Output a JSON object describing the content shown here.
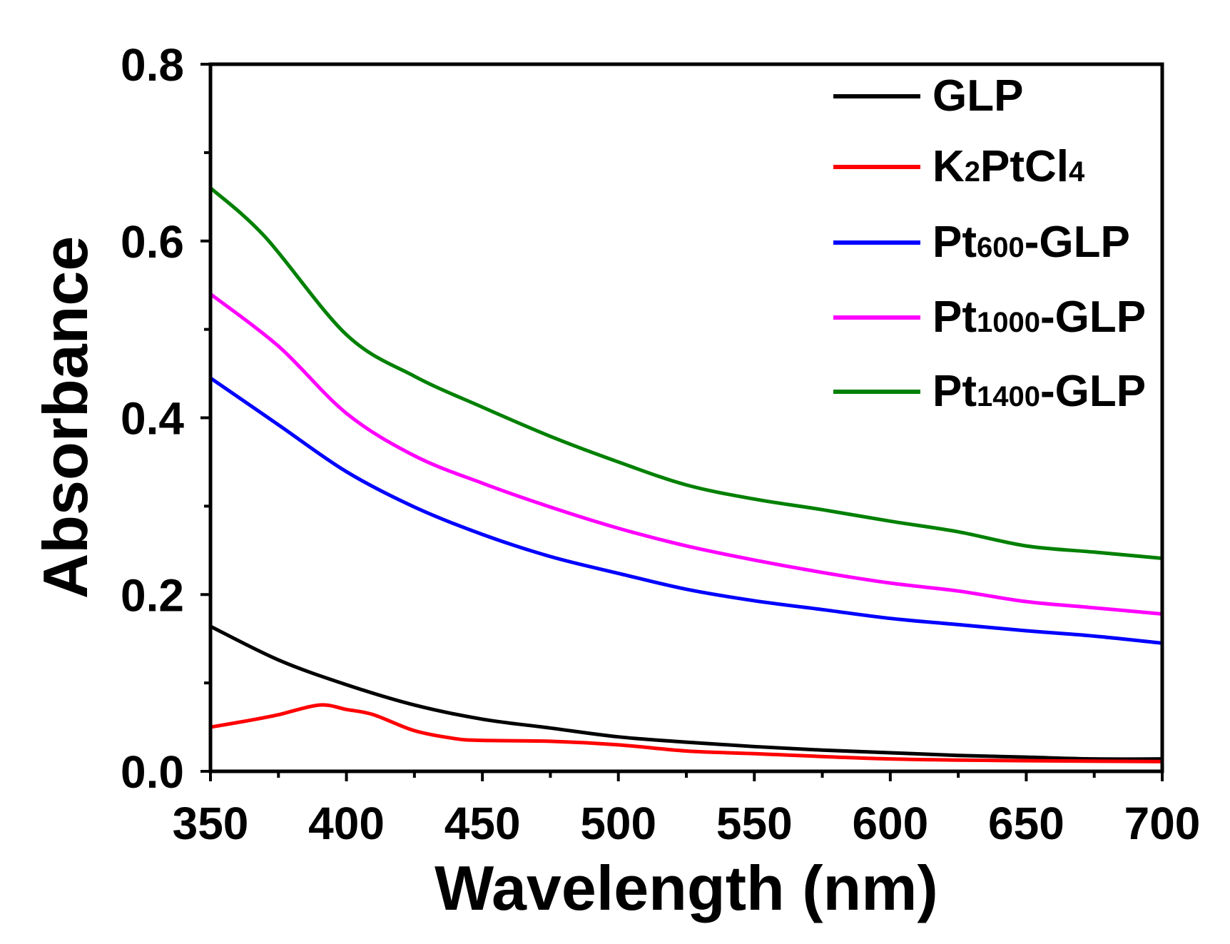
{
  "chart_data": {
    "type": "line",
    "title": "",
    "xlabel": "Wavelength (nm)",
    "ylabel": "Absorbance",
    "xlim": [
      350,
      700
    ],
    "ylim": [
      0,
      0.8
    ],
    "xticks": [
      350,
      400,
      450,
      500,
      550,
      600,
      650,
      700
    ],
    "xtick_labels": [
      "350",
      "400",
      "450",
      "500",
      "550",
      "600",
      "650",
      "700"
    ],
    "yticks": [
      0,
      0.2,
      0.4,
      0.6,
      0.8
    ],
    "ytick_labels": [
      "0.0",
      "0.2",
      "0.4",
      "0.6",
      "0.8"
    ],
    "x_minor_step": 25,
    "y_minor_step": 0.1,
    "grid": false,
    "legend_position": "top-right",
    "series": [
      {
        "id": "glp",
        "label_parts": [
          [
            "GLP",
            false
          ]
        ],
        "color": "#000000",
        "x": [
          350,
          375,
          400,
          425,
          450,
          475,
          500,
          525,
          550,
          575,
          600,
          625,
          650,
          675,
          700
        ],
        "y": [
          0.164,
          0.126,
          0.098,
          0.075,
          0.059,
          0.049,
          0.039,
          0.033,
          0.028,
          0.024,
          0.021,
          0.018,
          0.016,
          0.014,
          0.014
        ]
      },
      {
        "id": "k2ptcl4",
        "label_parts": [
          [
            "K",
            false
          ],
          [
            "2",
            true
          ],
          [
            "PtCl",
            false
          ],
          [
            "4",
            true
          ]
        ],
        "color": "#ff0000",
        "x": [
          350,
          365,
          375,
          390,
          400,
          410,
          425,
          440,
          450,
          475,
          500,
          525,
          550,
          600,
          650,
          700
        ],
        "y": [
          0.05,
          0.058,
          0.064,
          0.075,
          0.07,
          0.064,
          0.046,
          0.037,
          0.035,
          0.034,
          0.03,
          0.023,
          0.02,
          0.014,
          0.012,
          0.011
        ]
      },
      {
        "id": "pt600-glp",
        "label_parts": [
          [
            "Pt",
            false
          ],
          [
            "600",
            true
          ],
          [
            "-GLP",
            false
          ]
        ],
        "color": "#0000ff",
        "x": [
          350,
          375,
          400,
          425,
          450,
          475,
          500,
          525,
          550,
          575,
          600,
          625,
          650,
          675,
          700
        ],
        "y": [
          0.445,
          0.392,
          0.339,
          0.299,
          0.268,
          0.243,
          0.224,
          0.206,
          0.193,
          0.183,
          0.173,
          0.166,
          0.159,
          0.153,
          0.145
        ]
      },
      {
        "id": "pt1000-glp",
        "label_parts": [
          [
            "Pt",
            false
          ],
          [
            "1000",
            true
          ],
          [
            "-GLP",
            false
          ]
        ],
        "color": "#ff00ff",
        "x": [
          350,
          375,
          400,
          425,
          450,
          475,
          500,
          525,
          550,
          575,
          600,
          625,
          650,
          675,
          700
        ],
        "y": [
          0.54,
          0.481,
          0.405,
          0.357,
          0.326,
          0.299,
          0.275,
          0.255,
          0.239,
          0.225,
          0.213,
          0.204,
          0.192,
          0.185,
          0.178
        ]
      },
      {
        "id": "pt1400-glp",
        "label_parts": [
          [
            "Pt",
            false
          ],
          [
            "1400",
            true
          ],
          [
            "-GLP",
            false
          ]
        ],
        "color": "#008000",
        "x": [
          350,
          370,
          400,
          425,
          450,
          475,
          500,
          525,
          550,
          575,
          600,
          625,
          650,
          675,
          700
        ],
        "y": [
          0.66,
          0.605,
          0.494,
          0.447,
          0.412,
          0.379,
          0.35,
          0.324,
          0.308,
          0.296,
          0.283,
          0.271,
          0.255,
          0.248,
          0.241
        ]
      }
    ]
  }
}
